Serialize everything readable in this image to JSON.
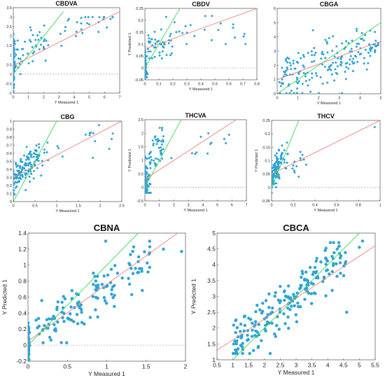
{
  "figure": {
    "colors": {
      "points": "#2ea4d4",
      "fit_line": "#f08080",
      "identity_line": "#3ad65a",
      "zero_line": "#8c8c8c",
      "axes": "#333333",
      "background": "#ffffff"
    }
  },
  "chart_data": [
    {
      "type": "scatter",
      "title": "CBDVA",
      "xlabel": "Y Measured 1",
      "ylabel": "Y Predicted 1",
      "xlim": [
        0,
        7
      ],
      "ylim": [
        -1,
        3.5
      ],
      "xticks": [
        "0",
        "1",
        "2",
        "3",
        "4",
        "5",
        "6",
        "7"
      ],
      "yticks": [
        "-1",
        "-0.5",
        "0",
        "0.5",
        "1",
        "1.5",
        "2",
        "2.5",
        "3",
        "3.5"
      ],
      "fit_line": [
        [
          0,
          0.45
        ],
        [
          7,
          3.3
        ]
      ],
      "identity_line": [
        [
          0,
          0
        ],
        [
          3.3,
          3.3
        ]
      ],
      "zero_line": 0
    },
    {
      "type": "scatter",
      "title": "CBDV",
      "xlabel": "Y Measured 1",
      "ylabel": "Y Predicted 1",
      "xlim": [
        0,
        0.8
      ],
      "ylim": [
        -0.05,
        0.25
      ],
      "xticks": [
        "0",
        "0.1",
        "0.2",
        "0.3",
        "0.4",
        "0.5",
        "0.6",
        "0.7",
        "0.8"
      ],
      "yticks": [
        "-0.05",
        "0",
        "0.05",
        "0.1",
        "0.15",
        "0.2",
        "0.25"
      ],
      "fit_line": [
        [
          0,
          0.08
        ],
        [
          0.8,
          0.25
        ]
      ],
      "identity_line": [
        [
          0,
          0
        ],
        [
          0.25,
          0.25
        ]
      ],
      "zero_line": 0
    },
    {
      "type": "scatter",
      "title": "CBGA",
      "xlabel": "Y Measured 1",
      "ylabel": "",
      "xlim": [
        0,
        5
      ],
      "ylim": [
        0,
        6
      ],
      "xticks": [
        "0",
        "1",
        "2",
        "3",
        "4",
        "5"
      ],
      "yticks": [
        "0",
        "1",
        "2",
        "3",
        "4",
        "5",
        "6"
      ],
      "fit_line": [
        [
          0,
          1.0
        ],
        [
          5,
          3.7
        ]
      ],
      "identity_line": [
        [
          0,
          0
        ],
        [
          5,
          5
        ]
      ],
      "zero_line": null
    },
    {
      "type": "scatter",
      "title": "CBG",
      "xlabel": "Y Measured 1",
      "ylabel": "Y Predicted 1",
      "xlim": [
        0,
        2.5
      ],
      "ylim": [
        0,
        1
      ],
      "xticks": [
        "0",
        "0.5",
        "1",
        "1.5",
        "2",
        "2.5"
      ],
      "yticks": [
        "0",
        "0.1",
        "0.2",
        "0.3",
        "0.4",
        "0.5",
        "0.6",
        "0.7",
        "0.8",
        "0.9",
        "1"
      ],
      "fit_line": [
        [
          0,
          0.3
        ],
        [
          2.5,
          1.0
        ]
      ],
      "identity_line": [
        [
          0,
          0
        ],
        [
          1.0,
          1.0
        ]
      ],
      "zero_line": null
    },
    {
      "type": "scatter",
      "title": "THCVA",
      "xlabel": "Y Measured 1",
      "ylabel": "Y Predicted 1",
      "xlim": [
        0,
        7
      ],
      "ylim": [
        -0.5,
        2.5
      ],
      "xticks": [
        "0",
        "1",
        "2",
        "3",
        "4",
        "5",
        "6",
        "7"
      ],
      "yticks": [
        "-0.5",
        "0",
        "0.5",
        "1",
        "1.5",
        "2",
        "2.5"
      ],
      "fit_line": [
        [
          0,
          0.3
        ],
        [
          6.3,
          2.5
        ]
      ],
      "identity_line": [
        [
          0,
          0
        ],
        [
          2.5,
          2.5
        ]
      ],
      "zero_line": 0
    },
    {
      "type": "scatter",
      "title": "THCV",
      "xlabel": "Y Measured 1",
      "ylabel": "Y Predicted 1",
      "xlim": [
        0,
        1
      ],
      "ylim": [
        -0.05,
        0.25
      ],
      "xticks": [
        "0",
        "0.2",
        "0.4",
        "0.6",
        "0.8",
        "1"
      ],
      "yticks": [
        "-0.05",
        "0",
        "0.05",
        "0.1",
        "0.15",
        "0.2",
        "0.25"
      ],
      "fit_line": [
        [
          0,
          0.05
        ],
        [
          1,
          0.25
        ]
      ],
      "identity_line": [
        [
          0,
          0
        ],
        [
          0.25,
          0.25
        ]
      ],
      "zero_line": 0
    },
    {
      "type": "scatter",
      "title": "CBNA",
      "xlabel": "Y Measured 1",
      "ylabel": "Y Predicted 1",
      "xlim": [
        0,
        2
      ],
      "ylim": [
        -0.2,
        1.4
      ],
      "xticks": [
        "0",
        "0.5",
        "1",
        "1.5",
        "2"
      ],
      "yticks": [
        "-0.2",
        "0",
        "0.2",
        "0.4",
        "0.6",
        "0.8",
        "1",
        "1.2",
        "1.4"
      ],
      "fit_line": [
        [
          0,
          0.05
        ],
        [
          1.9,
          1.4
        ]
      ],
      "identity_line": [
        [
          0,
          0
        ],
        [
          1.4,
          1.4
        ]
      ],
      "zero_line": 0
    },
    {
      "type": "scatter",
      "title": "CBCA",
      "xlabel": "Y Measured 1",
      "ylabel": "Y Predicted 1",
      "xlim": [
        0.5,
        5.5
      ],
      "ylim": [
        1,
        5
      ],
      "xticks": [
        "0.5",
        "1",
        "1.5",
        "2",
        "2.5",
        "3",
        "3.5",
        "4",
        "4.5",
        "5",
        "5.5"
      ],
      "yticks": [
        "1",
        "1.5",
        "2",
        "2.5",
        "3",
        "3.5",
        "4",
        "4.5",
        "5"
      ],
      "fit_line": [
        [
          0.5,
          1.3
        ],
        [
          5.5,
          4.6
        ]
      ],
      "identity_line": [
        [
          1,
          1
        ],
        [
          5,
          5
        ]
      ],
      "zero_line": null
    }
  ]
}
